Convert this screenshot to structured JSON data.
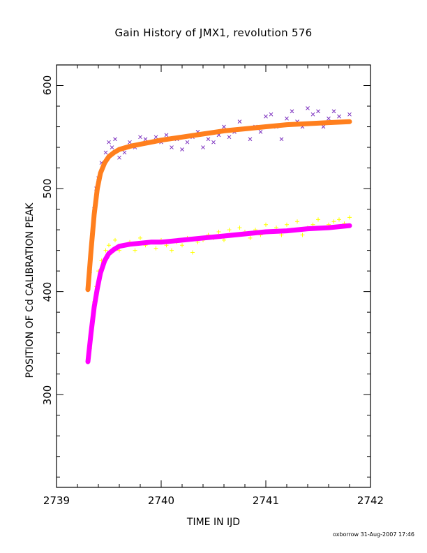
{
  "chart_data": {
    "type": "scatter",
    "title": "Gain History of JMX1, revolution 576",
    "xlabel": "TIME IN IJD",
    "ylabel": "POSITION OF Cd CALIBRATION PEAK",
    "xlim": [
      2739,
      2742
    ],
    "ylim": [
      210,
      620
    ],
    "x_ticks": [
      "2739",
      "2740",
      "2741",
      "2742"
    ],
    "y_ticks": [
      "300",
      "400",
      "500",
      "600"
    ],
    "grid": false,
    "series": [
      {
        "marker": "x",
        "color": "#7b2fbe",
        "x": [
          2739.32,
          2739.34,
          2739.36,
          2739.38,
          2739.4,
          2739.43,
          2739.47,
          2739.5,
          2739.53,
          2739.56,
          2739.6,
          2739.65,
          2739.7,
          2739.75,
          2739.8,
          2739.85,
          2739.9,
          2739.95,
          2740.0,
          2740.05,
          2740.1,
          2740.15,
          2740.2,
          2740.25,
          2740.3,
          2740.35,
          2740.4,
          2740.45,
          2740.5,
          2740.55,
          2740.6,
          2740.65,
          2740.7,
          2740.75,
          2740.8,
          2740.85,
          2740.9,
          2740.95,
          2741.0,
          2741.05,
          2741.1,
          2741.15,
          2741.2,
          2741.25,
          2741.3,
          2741.35,
          2741.4,
          2741.45,
          2741.5,
          2741.55,
          2741.6,
          2741.65,
          2741.7,
          2741.75,
          2741.8
        ],
        "y": [
          420,
          455,
          480,
          500,
          510,
          525,
          535,
          545,
          540,
          548,
          530,
          535,
          545,
          540,
          550,
          548,
          545,
          550,
          545,
          552,
          540,
          548,
          538,
          545,
          550,
          555,
          540,
          548,
          545,
          552,
          560,
          550,
          555,
          565,
          558,
          548,
          560,
          555,
          570,
          572,
          560,
          548,
          568,
          575,
          565,
          560,
          578,
          572,
          575,
          560,
          568,
          575,
          570,
          565,
          572
        ]
      },
      {
        "marker": "+",
        "color": "#ffff00",
        "x": [
          2739.32,
          2739.34,
          2739.36,
          2739.38,
          2739.4,
          2739.43,
          2739.47,
          2739.5,
          2739.53,
          2739.56,
          2739.6,
          2739.65,
          2739.7,
          2739.75,
          2739.8,
          2739.85,
          2739.9,
          2739.95,
          2740.0,
          2740.05,
          2740.1,
          2740.15,
          2740.2,
          2740.25,
          2740.3,
          2740.35,
          2740.4,
          2740.45,
          2740.5,
          2740.55,
          2740.6,
          2740.65,
          2740.7,
          2740.75,
          2740.8,
          2740.85,
          2740.9,
          2740.95,
          2741.0,
          2741.05,
          2741.1,
          2741.15,
          2741.2,
          2741.25,
          2741.3,
          2741.35,
          2741.4,
          2741.45,
          2741.5,
          2741.55,
          2741.6,
          2741.65,
          2741.7,
          2741.75,
          2741.8
        ],
        "y": [
          345,
          370,
          390,
          405,
          420,
          430,
          440,
          445,
          438,
          450,
          440,
          445,
          448,
          440,
          452,
          445,
          448,
          442,
          450,
          445,
          440,
          448,
          445,
          452,
          438,
          448,
          450,
          455,
          452,
          458,
          450,
          460,
          455,
          462,
          458,
          452,
          460,
          455,
          465,
          458,
          462,
          455,
          465,
          460,
          468,
          455,
          462,
          465,
          470,
          462,
          465,
          468,
          470,
          466,
          472
        ]
      },
      {
        "marker": "fit",
        "color": "#ff7f1e",
        "x": [
          2739.3,
          2739.33,
          2739.36,
          2739.39,
          2739.42,
          2739.46,
          2739.5,
          2739.55,
          2739.6,
          2739.7,
          2739.8,
          2739.9,
          2740.0,
          2740.2,
          2740.4,
          2740.6,
          2740.8,
          2741.0,
          2741.2,
          2741.4,
          2741.6,
          2741.8
        ],
        "y": [
          402,
          440,
          475,
          500,
          515,
          525,
          531,
          535,
          538,
          541,
          543,
          545,
          547,
          550,
          553,
          556,
          558,
          560,
          562,
          563,
          564,
          565
        ]
      },
      {
        "marker": "fit",
        "color": "#ff00ff",
        "x": [
          2739.3,
          2739.33,
          2739.36,
          2739.39,
          2739.42,
          2739.46,
          2739.5,
          2739.55,
          2739.6,
          2739.7,
          2739.8,
          2739.9,
          2740.0,
          2740.2,
          2740.4,
          2740.6,
          2740.8,
          2741.0,
          2741.2,
          2741.4,
          2741.6,
          2741.8
        ],
        "y": [
          332,
          360,
          385,
          403,
          418,
          430,
          437,
          441,
          444,
          446,
          447,
          448,
          448,
          450,
          452,
          454,
          456,
          458,
          459,
          461,
          462,
          464
        ]
      }
    ]
  },
  "footer": "oxborrow 31-Aug-2007 17:46"
}
